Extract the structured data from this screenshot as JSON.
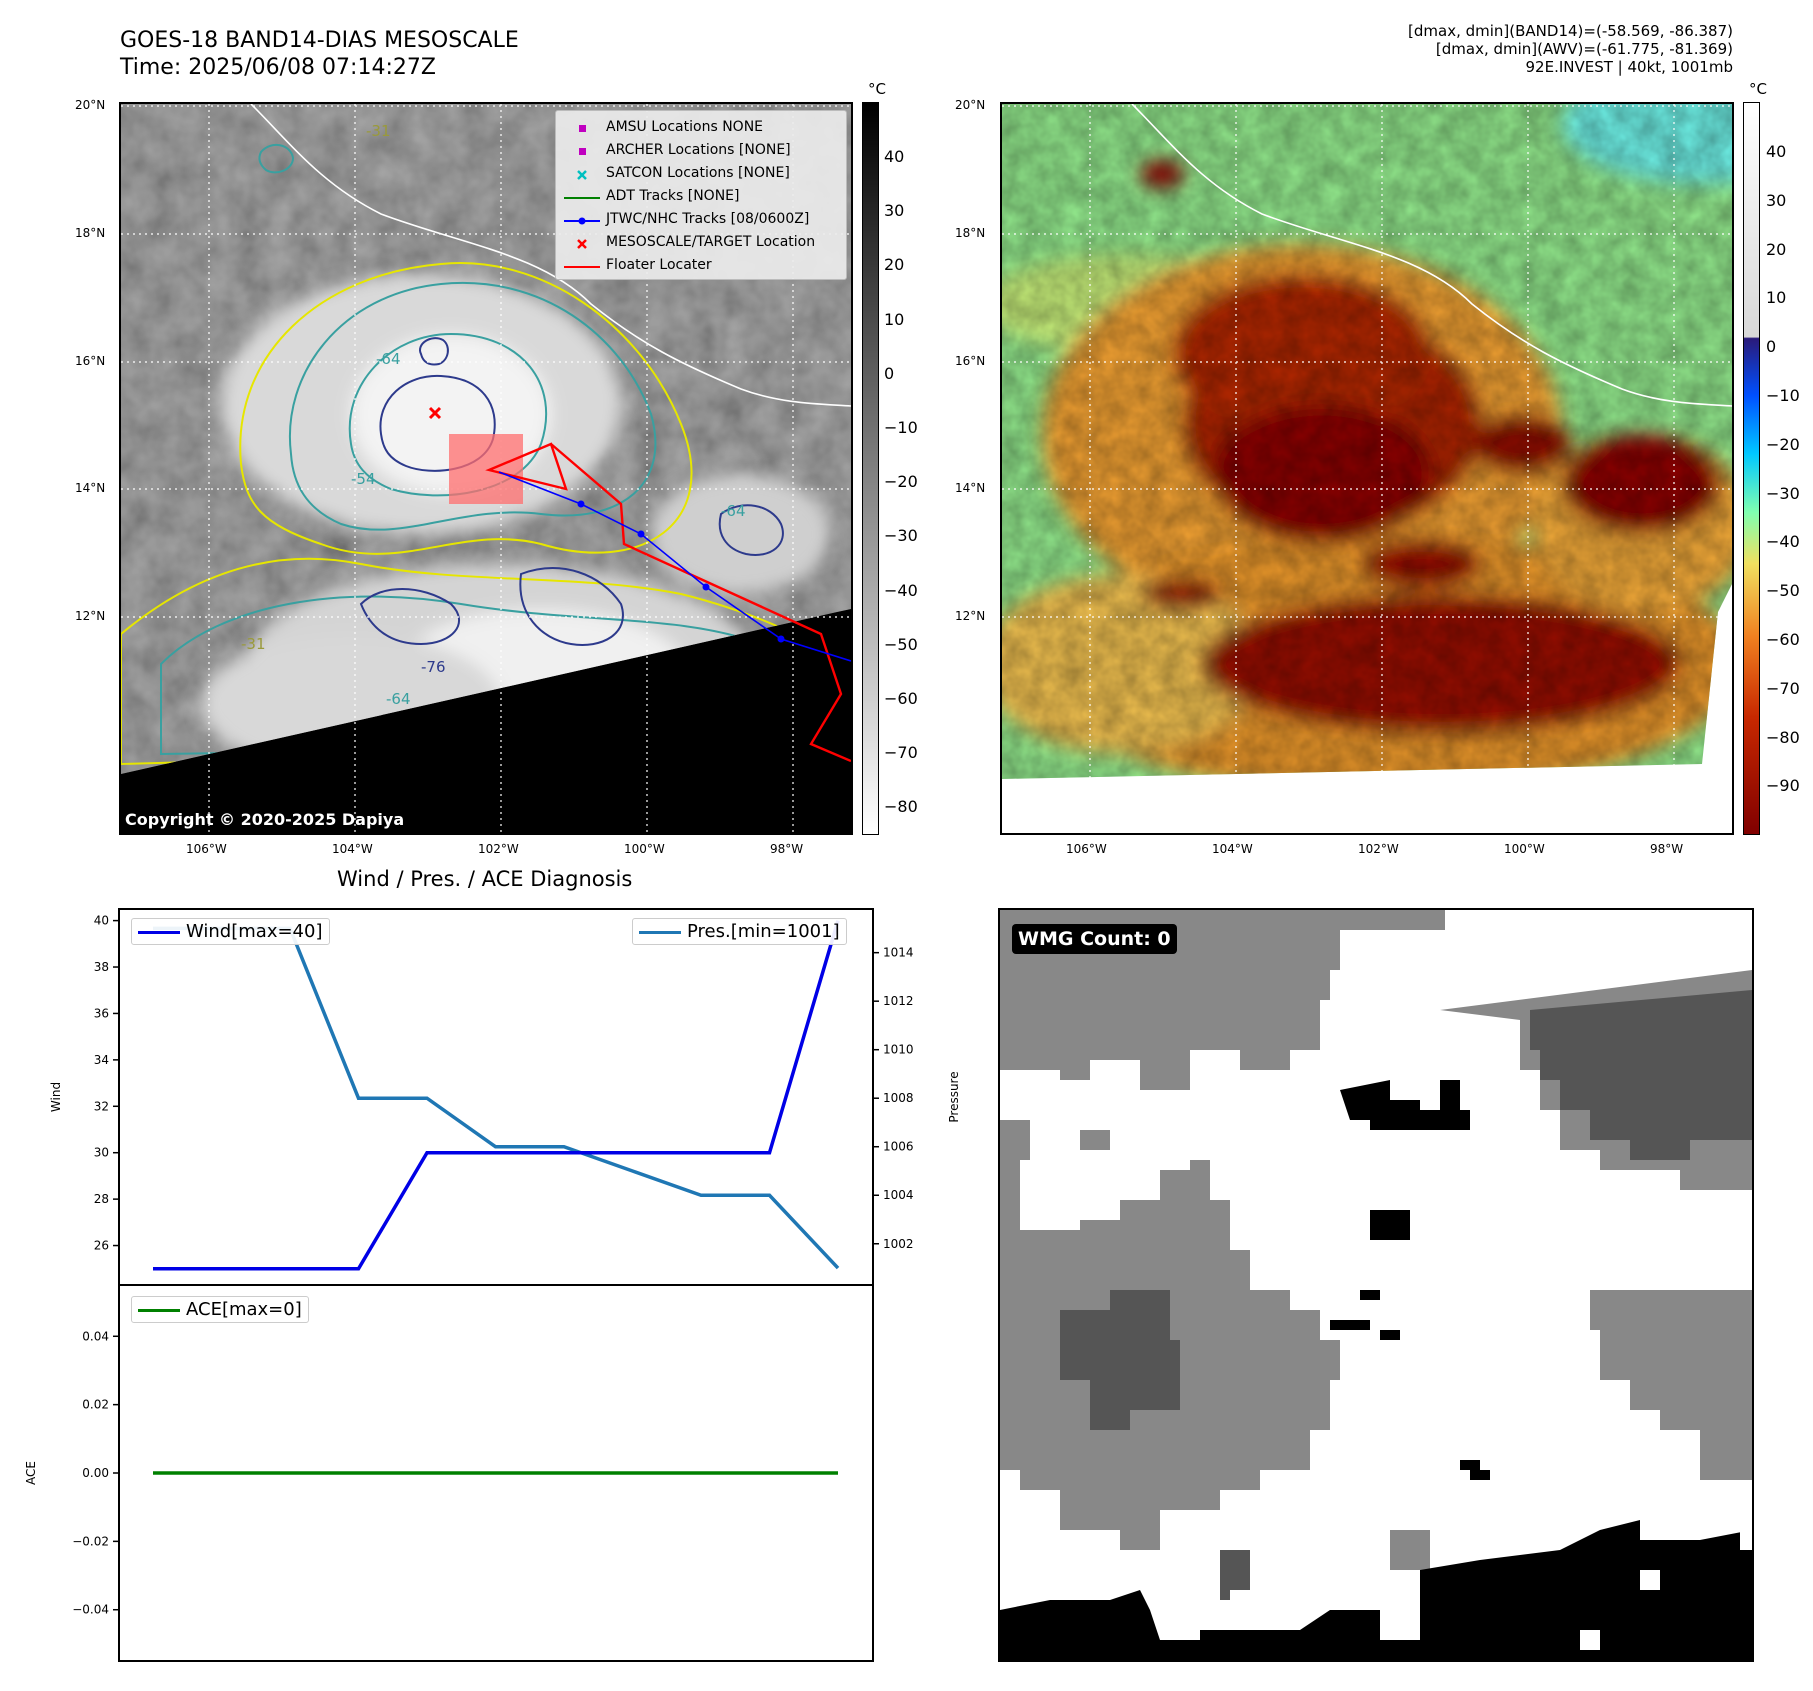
{
  "header": {
    "title_line1": "GOES-18 BAND14-DIAS MESOSCALE",
    "title_line2": "Time: 2025/06/08 07:14:27Z",
    "info_line1": "[dmax, dmin](BAND14)=(-58.569, -86.387)",
    "info_line2": "[dmax, dmin](AWV)=(-61.775, -81.369)",
    "info_line3": "92E.INVEST | 40kt, 1001mb"
  },
  "maps": {
    "lat_labels": [
      "20°N",
      "18°N",
      "16°N",
      "14°N",
      "12°N"
    ],
    "lon_labels": [
      "106°W",
      "104°W",
      "102°W",
      "100°W",
      "98°W"
    ],
    "copyright": "Copyright © 2020-2025 Dapiya",
    "contour_labels": [
      "-31",
      "-64",
      "-54",
      "-64",
      "-31",
      "-76",
      "-64"
    ],
    "colorbar_unit": "°C",
    "colorbar_left_ticks": [
      "40",
      "30",
      "20",
      "10",
      "0",
      "−10",
      "−20",
      "−30",
      "−40",
      "−50",
      "−60",
      "−70",
      "−80"
    ],
    "colorbar_right_ticks": [
      "40",
      "30",
      "20",
      "10",
      "0",
      "−10",
      "−20",
      "−30",
      "−40",
      "−50",
      "−60",
      "−70",
      "−80",
      "−90"
    ],
    "legend": [
      {
        "label": "AMSU Locations NONE",
        "color": "#c000c0",
        "symbol": "square"
      },
      {
        "label": "ARCHER Locations [NONE]",
        "color": "#c000c0",
        "symbol": "square"
      },
      {
        "label": "SATCON Locations [NONE]",
        "color": "#00c0c0",
        "symbol": "x"
      },
      {
        "label": "ADT Tracks [NONE]",
        "color": "#008000",
        "symbol": "line"
      },
      {
        "label": "JTWC/NHC Tracks [08/0600Z]",
        "color": "#0000ff",
        "symbol": "line-dot"
      },
      {
        "label": "MESOSCALE/TARGET Location",
        "color": "#ff0000",
        "symbol": "x"
      },
      {
        "label": "Floater Locater",
        "color": "#ff0000",
        "symbol": "line"
      }
    ]
  },
  "wmg": {
    "badge": "WMG Count: 0"
  },
  "chart_data": [
    {
      "type": "line",
      "title": "Wind / Pres. / ACE Diagnosis",
      "x": [
        0,
        1,
        2,
        3,
        4,
        5,
        6,
        7,
        8,
        9,
        10
      ],
      "series": [
        {
          "name": "Wind[max=40]",
          "axis": "left",
          "color": "#0000e6",
          "values": [
            25,
            25,
            25,
            25,
            30,
            30,
            30,
            30,
            30,
            30,
            40
          ]
        },
        {
          "name": "Pres.[min=1001]",
          "axis": "right",
          "color": "#1f77b4",
          "values": [
            1015,
            1015,
            1015,
            1008,
            1008,
            1006,
            1006,
            1005,
            1004,
            1004,
            1001
          ]
        }
      ],
      "ylabel": "Wind",
      "ylabel_right": "Pressure",
      "ylim": [
        24.3,
        40.5
      ],
      "ylim_right": [
        1000.3,
        1015.8
      ],
      "yticks": [
        26,
        28,
        30,
        32,
        34,
        36,
        38,
        40
      ],
      "yticks_right": [
        1002,
        1004,
        1006,
        1008,
        1010,
        1012,
        1014
      ]
    },
    {
      "type": "line",
      "x": [
        0,
        1,
        2,
        3,
        4,
        5,
        6,
        7,
        8,
        9,
        10
      ],
      "series": [
        {
          "name": "ACE[max=0]",
          "color": "#008000",
          "values": [
            0,
            0,
            0,
            0,
            0,
            0,
            0,
            0,
            0,
            0,
            0
          ]
        }
      ],
      "ylabel": "ACE",
      "ylim": [
        -0.055,
        0.055
      ],
      "yticks": [
        0.04,
        0.02,
        0.0,
        -0.02,
        -0.04
      ],
      "ytick_labels": [
        "0.04",
        "0.02",
        "0.00",
        "−0.02",
        "−0.04"
      ]
    }
  ]
}
